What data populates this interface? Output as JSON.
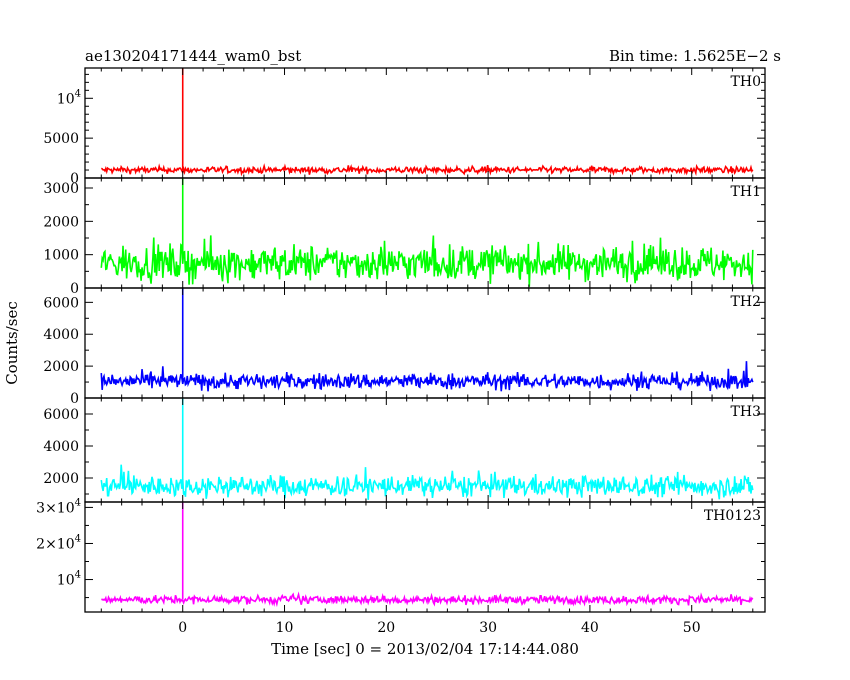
{
  "chart_data": {
    "type": "line",
    "title_left": "ae130204171444_wam0_bst",
    "title_right": "Bin time: 1.5625E−2 s",
    "xlabel": "Time [sec] 0 = 2013/02/04 17:14:44.080",
    "ylabel": "Counts/sec",
    "xlim": [
      -9.6,
      57.2
    ],
    "x_ticks": [
      0,
      10,
      20,
      30,
      40,
      50
    ],
    "x_tick_labels": [
      "0",
      "10",
      "20",
      "30",
      "40",
      "50"
    ],
    "data_start": -8,
    "data_end": 56,
    "spike_time": 0,
    "grid": false,
    "panels": [
      {
        "name": "TH0",
        "color": "#ff0000",
        "ylim": [
          0,
          13800
        ],
        "y_ticks": [
          {
            "v": 0,
            "label": "0"
          },
          {
            "v": 5000,
            "label": "5000"
          },
          {
            "v": 10000,
            "label": "10",
            "exp": "4"
          }
        ],
        "y_minor": [
          1000,
          2000,
          3000,
          4000,
          6000,
          7000,
          8000,
          9000,
          11000,
          12000,
          13000
        ],
        "baseline": 1000,
        "noise": 200,
        "peak": 13800
      },
      {
        "name": "TH1",
        "color": "#00ff00",
        "ylim": [
          0,
          3300
        ],
        "y_ticks": [
          {
            "v": 0,
            "label": "0"
          },
          {
            "v": 1000,
            "label": "1000"
          },
          {
            "v": 2000,
            "label": "2000"
          },
          {
            "v": 3000,
            "label": "3000"
          }
        ],
        "y_minor": [
          500,
          1500,
          2500
        ],
        "baseline": 750,
        "noise": 260,
        "peak": 3300
      },
      {
        "name": "TH2",
        "color": "#0000ff",
        "ylim": [
          0,
          6900
        ],
        "y_ticks": [
          {
            "v": 0,
            "label": "0"
          },
          {
            "v": 2000,
            "label": "2000"
          },
          {
            "v": 4000,
            "label": "4000"
          },
          {
            "v": 6000,
            "label": "6000"
          }
        ],
        "y_minor": [
          1000,
          3000,
          5000
        ],
        "baseline": 1050,
        "noise": 250,
        "peak": 6900
      },
      {
        "name": "TH3",
        "color": "#00ffff",
        "ylim": [
          500,
          7000
        ],
        "y_ticks": [
          {
            "v": 2000,
            "label": "2000"
          },
          {
            "v": 4000,
            "label": "4000"
          },
          {
            "v": 6000,
            "label": "6000"
          }
        ],
        "y_minor": [
          1000,
          3000,
          5000,
          7000
        ],
        "baseline": 1500,
        "noise": 330,
        "peak": 7000
      },
      {
        "name": "TH0123",
        "color": "#ff00ff",
        "ylim": [
          1000,
          31500
        ],
        "y_ticks": [
          {
            "v": 10000,
            "label": "10",
            "exp": "4"
          },
          {
            "v": 20000,
            "label": "2×10",
            "exp": "4"
          },
          {
            "v": 30000,
            "label": "3×10",
            "exp": "4"
          }
        ],
        "y_minor": [
          5000,
          15000,
          25000
        ],
        "baseline": 4400,
        "noise": 550,
        "peak": 31500
      }
    ]
  }
}
